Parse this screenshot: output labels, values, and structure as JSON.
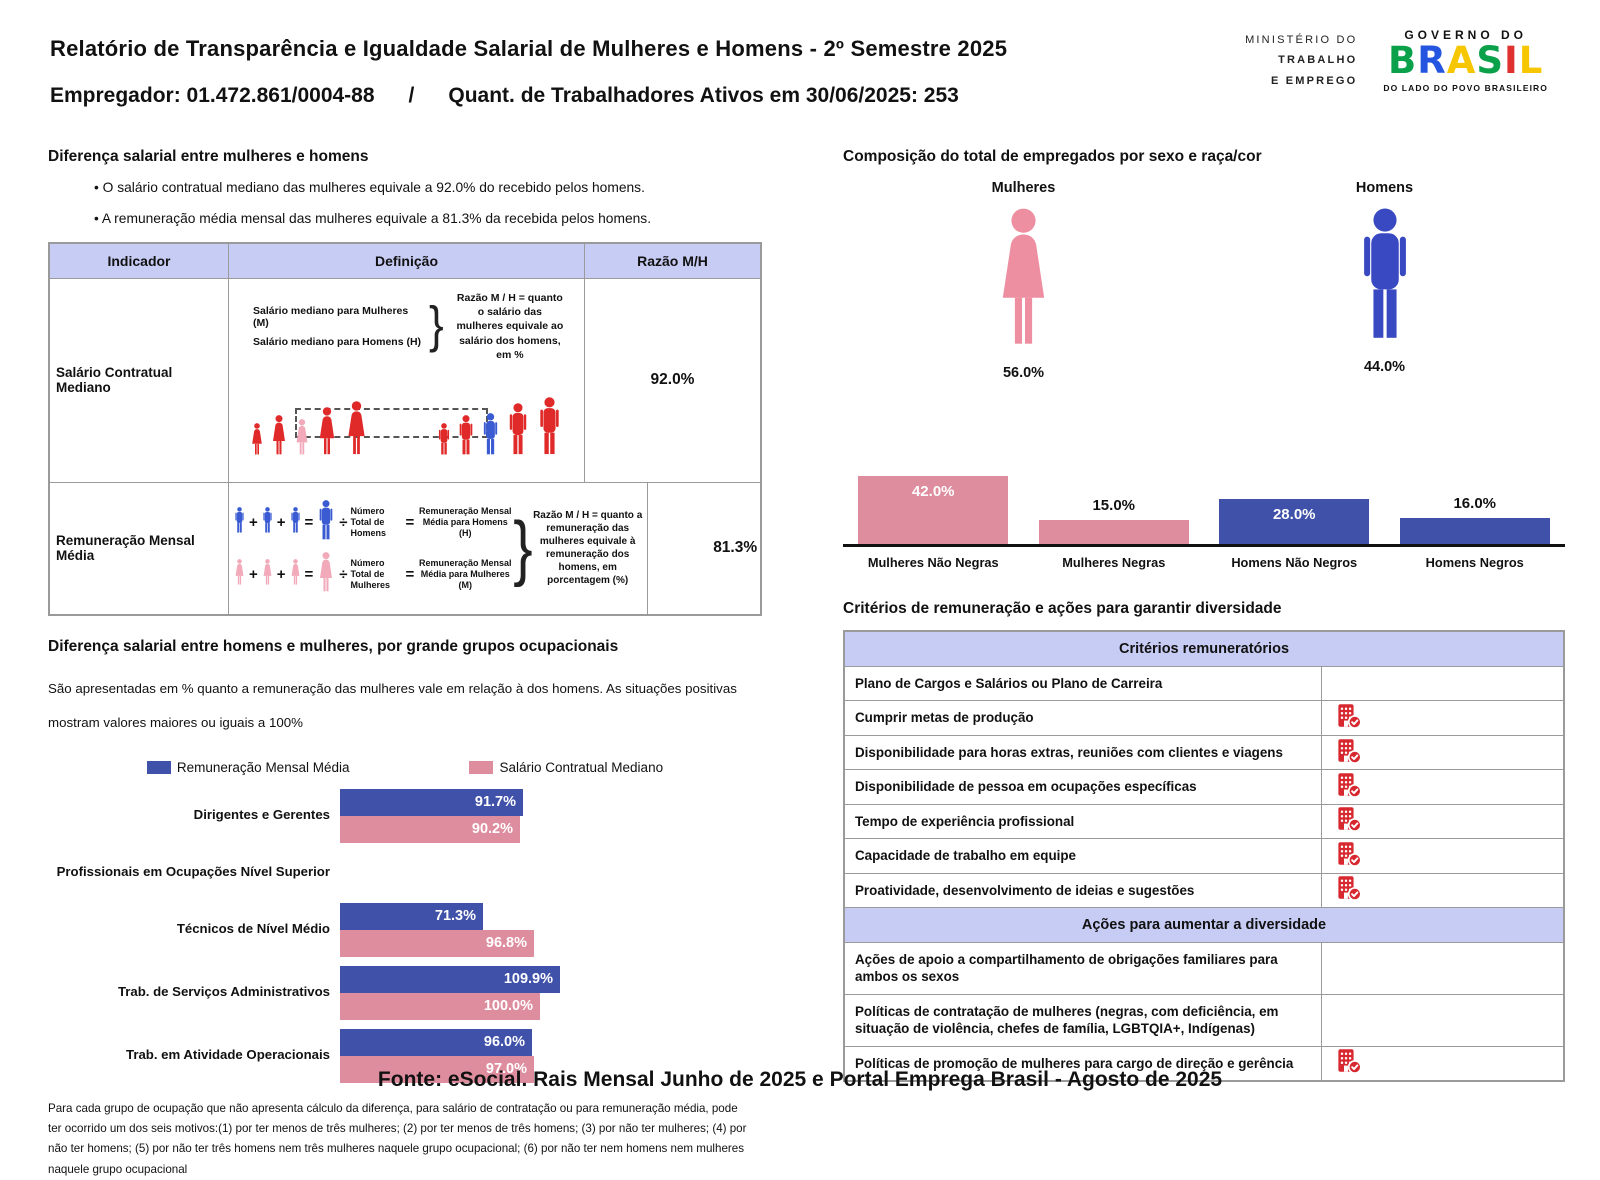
{
  "colors": {
    "pink_bar": "#de8d9e",
    "blue_bar": "#3f51a8",
    "figure_pink": "#ee8fa1",
    "figure_blue": "#3949c2",
    "diagram_red": "#e02a2a",
    "diagram_pink": "#f2a9ba",
    "diagram_blue": "#3b5bd2",
    "icon_red": "#d7282f",
    "header_bg": "#c7ccf4"
  },
  "header": {
    "title": "Relatório de Transparência e Igualdade Salarial de Mulheres e Homens - 2º Semestre 2025",
    "employer": "Empregador: 01.472.861/0004-88",
    "separator": "/",
    "workers": "Quant. de Trabalhadores Ativos em 30/06/2025: 253",
    "ministry_line1": "MINISTÉRIO DO",
    "ministry_line2": "TRABALHO",
    "ministry_line3": "E EMPREGO",
    "gov_top": "GOVERNO DO",
    "gov_name": "BRASIL",
    "gov_tagline": "DO LADO DO POVO BRASILEIRO"
  },
  "salary_gap": {
    "title": "Diferença salarial entre mulheres e homens",
    "bullets": [
      "O salário contratual mediano das mulheres equivale a 92.0% do recebido pelos homens.",
      "A remuneração média mensal das mulheres equivale a 81.3% da recebida pelos homens."
    ],
    "table": {
      "headers": [
        "Indicador",
        "Definição",
        "Razão M/H"
      ],
      "rows": [
        {
          "indicator": "Salário Contratual Mediano",
          "ratio": "92.0%",
          "median_women_label": "Salário mediano para Mulheres (M)",
          "median_men_label": "Salário mediano para Homens (H)",
          "ratio_explain": "Razão M / H = quanto o salário das mulheres equivale ao salário dos homens, em %"
        },
        {
          "indicator": "Remuneração Mensal Média",
          "ratio": "81.3%",
          "men_divisor_label": "Número Total de Homens",
          "men_result_label": "Remuneração Mensal Média para Homens (H)",
          "women_divisor_label": "Número Total de Mulheres",
          "women_result_label": "Remuneração Mensal Média para Mulheres (M)",
          "ratio_explain": "Razão M / H = quanto a remuneração das mulheres equivale à remuneração dos homens, em porcentagem (%)"
        }
      ]
    },
    "operators": {
      "plus": "+",
      "equals": "=",
      "divide": "÷"
    }
  },
  "occupational": {
    "title": "Diferença salarial entre homens e mulheres, por grande grupos ocupacionais",
    "subtitle": "São apresentadas em % quanto a remuneração das mulheres vale em relação à dos homens. As situações positivas mostram valores maiores ou iguais a 100%",
    "footnote": "Para cada grupo de ocupação que não apresenta cálculo da diferença, para salário de contratação ou para remuneração média, pode ter ocorrido um dos seis motivos:(1) por ter menos de três mulheres; (2) por ter menos de três homens; (3) por não ter mulheres; (4) por não ter homens; (5) por não ter três homens nem três mulheres naquele grupo ocupacional; (6) por não ter nem homens nem mulheres naquele grupo ocupacional"
  },
  "composition": {
    "title": "Composição do total de empregados por sexo e raça/cor",
    "female_label": "Mulheres",
    "female_value": "56.0%",
    "male_label": "Homens",
    "male_value": "44.0%"
  },
  "criteria": {
    "title": "Critérios de remuneração e ações para garantir diversidade",
    "sections": [
      {
        "header": "Critérios remuneratórios",
        "rows": [
          {
            "label": "Plano de Cargos e Salários ou Plano de Carreira",
            "checked": false
          },
          {
            "label": "Cumprir metas de produção",
            "checked": true
          },
          {
            "label": "Disponibilidade para horas extras, reuniões com clientes e viagens",
            "checked": true
          },
          {
            "label": "Disponibilidade de pessoa em ocupações específicas",
            "checked": true
          },
          {
            "label": "Tempo de experiência profissional",
            "checked": true
          },
          {
            "label": "Capacidade de trabalho em equipe",
            "checked": true
          },
          {
            "label": "Proatividade, desenvolvimento de ideias e sugestões",
            "checked": true
          }
        ]
      },
      {
        "header": "Ações para aumentar a diversidade",
        "rows": [
          {
            "label": "Ações de apoio a compartilhamento de obrigações familiares para ambos os sexos",
            "checked": false
          },
          {
            "label": "Políticas de contratação de mulheres (negras, com deficiência, em situação de violência, chefes de família, LGBTQIA+, Indígenas)",
            "checked": false
          },
          {
            "label": "Políticas de promoção de mulheres para cargo de direção e gerência",
            "checked": true
          }
        ]
      }
    ]
  },
  "footer": {
    "source": "Fonte: eSocial. Rais Mensal Junho de 2025 e Portal Emprega Brasil - Agosto de 2025"
  },
  "chart_data": [
    {
      "type": "pictogram",
      "title": "Composição do total de empregados por sexo e raça/cor",
      "categories": [
        "Mulheres",
        "Homens"
      ],
      "values": [
        56.0,
        44.0
      ],
      "value_labels": [
        "56.0%",
        "44.0%"
      ]
    },
    {
      "type": "bar",
      "categories": [
        "Mulheres Não Negras",
        "Mulheres Negras",
        "Homens Não Negros",
        "Homens Negros"
      ],
      "values": [
        42.0,
        15.0,
        28.0,
        16.0
      ],
      "value_labels": [
        "42.0%",
        "15.0%",
        "28.0%",
        "16.0%"
      ],
      "bar_color_keys": [
        "pink_bar",
        "pink_bar",
        "blue_bar",
        "blue_bar"
      ],
      "value_label_positions": [
        "inside",
        "above",
        "inside",
        "above"
      ],
      "ylim": [
        0,
        45
      ],
      "grid": false
    },
    {
      "type": "bar",
      "orientation": "horizontal",
      "categories": [
        "Dirigentes e Gerentes",
        "Profissionais em Ocupações Nível Superior",
        "Técnicos de Nível Médio",
        "Trab. de Serviços Administrativos",
        "Trab. em Atividade Operacionais"
      ],
      "series": [
        {
          "name": "Remuneração Mensal Média",
          "color_key": "blue_bar",
          "values": [
            91.7,
            null,
            71.3,
            109.9,
            96.0
          ],
          "value_labels": [
            "91.7%",
            null,
            "71.3%",
            "109.9%",
            "96.0%"
          ]
        },
        {
          "name": "Salário Contratual Mediano",
          "color_key": "pink_bar",
          "values": [
            90.2,
            null,
            96.8,
            100.0,
            97.0
          ],
          "value_labels": [
            "90.2%",
            null,
            "96.8%",
            "100.0%",
            "97.0%"
          ]
        }
      ],
      "xlim": [
        0,
        115
      ]
    }
  ]
}
